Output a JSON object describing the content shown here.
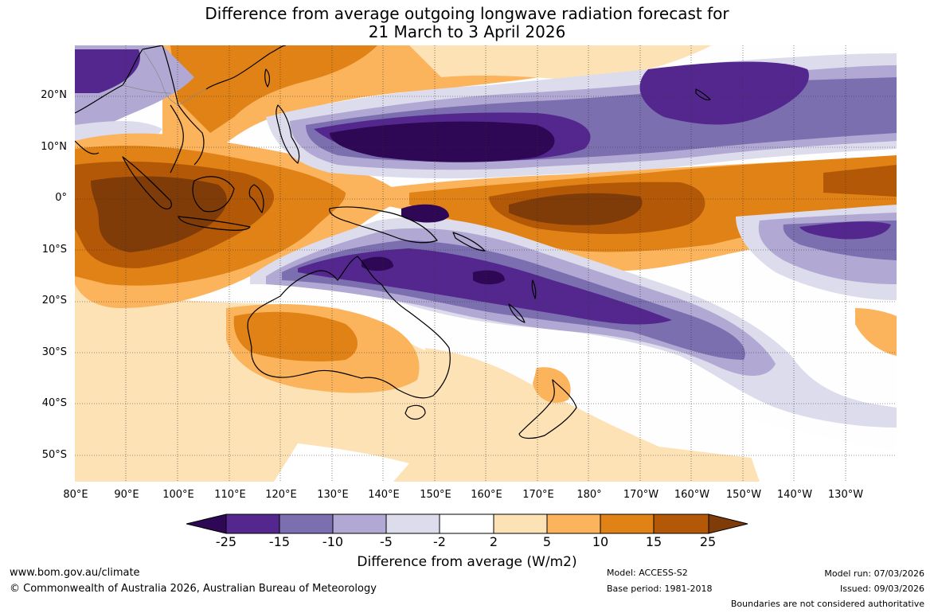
{
  "title": {
    "line1": "Difference from average outgoing longwave radiation forecast for",
    "line2": "21 March to 3 April 2026"
  },
  "map": {
    "lat_labels": [
      "20°N",
      "10°N",
      "0°",
      "10°S",
      "20°S",
      "30°S",
      "40°S",
      "50°S"
    ],
    "lon_labels": [
      "80°E",
      "90°E",
      "100°E",
      "110°E",
      "120°E",
      "130°E",
      "140°E",
      "150°E",
      "160°E",
      "170°E",
      "180°",
      "170°W",
      "160°W",
      "150°W",
      "140°W",
      "130°W"
    ]
  },
  "colorbar": {
    "title": "Difference from average (W/m2)",
    "tick_labels": [
      "-25",
      "-15",
      "-10",
      "-5",
      "-2",
      "2",
      "5",
      "10",
      "15",
      "25"
    ],
    "colors": [
      "#2e0854",
      "#54278f",
      "#7b6fb0",
      "#b1a9d3",
      "#dcdcec",
      "#ffffff",
      "#fde2b6",
      "#fbb35c",
      "#e08216",
      "#b35806",
      "#7f3b08"
    ]
  },
  "footer": {
    "website": "www.bom.gov.au/climate",
    "copyright": "© Commonwealth of Australia 2026, Australian Bureau of Meteorology",
    "model": "Model: ACCESS-S2",
    "base_period": "Base period: 1981-2018",
    "model_run": "Model run: 07/03/2026",
    "issued": "Issued: 09/03/2026",
    "disclaimer": "Boundaries are not considered authoritative"
  }
}
